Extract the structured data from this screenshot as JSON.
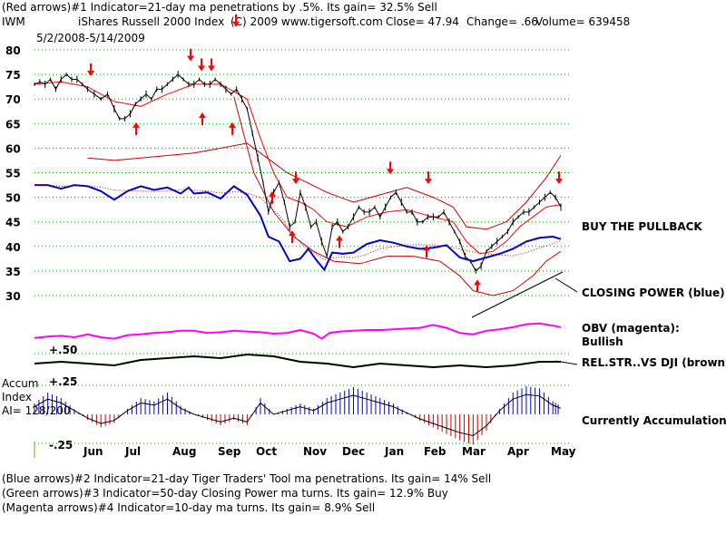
{
  "header": {
    "line1": "(Red arrows)#1 Indicator=21-day ma penetrations by .5%. Its gain= 32.5% Sell",
    "symbol": "IWM",
    "name": "iShares Russell 2000 Index",
    "copyright": "(C) 2009 www.tigersoft.com",
    "close": "Close=  47.94",
    "change": "Change= .66",
    "volume": "Volume= 639458",
    "daterange": "5/2/2008-5/14/2009"
  },
  "footer": {
    "line1": "(Blue arrows)#2 Indicator=21-day Tiger Traders' Tool ma penetrations. Its gain= 14% Sell",
    "line2": "(Green arrows)#3 Indicator=50-day Closing Power ma turns. Its gain= 12.9% Buy",
    "line3": "(Magenta arrows)#4 Indicator=10-day ma turns. Its gain= 8.9% Sell"
  },
  "annotations": {
    "buy": "BUY THE PULLBACK",
    "cp": "CLOSING POWER (blue):",
    "obv": "OBV (magenta):",
    "obv2": "Bullish",
    "rs": "REL.STR..VS DJI (brown):",
    "accum_label1": "Accum",
    "accum_label2": "Index",
    "accum_label3": "AI= 128/200",
    "accum_status": "Currently Accumulation",
    "rs_up": "+.50",
    "acc_up": "+.25",
    "acc_dn": "-.25"
  },
  "colors": {
    "price": "#000000",
    "ma": "#ff0000",
    "band": "#cc0000",
    "closing_power": "#0000cc",
    "obv": "#ff00ff",
    "rel_strength": "#000000",
    "arrow": "#ff0000",
    "accum_pos": "#0000cc",
    "accum_neg": "#cc0000",
    "grid": "#009900"
  },
  "chart_data": {
    "type": "line",
    "title": "iShares Russell 2000 Index",
    "y_ticks": [
      80,
      75,
      70,
      65,
      60,
      55,
      50,
      45,
      40,
      35,
      30
    ],
    "ylim": [
      25,
      83
    ],
    "months": [
      "Jun",
      "Jul",
      "Aug",
      "Sep",
      "Oct",
      "Nov",
      "Dec",
      "Jan",
      "Feb",
      "Mar",
      "Apr",
      "May"
    ],
    "grid": true,
    "price": [
      [
        0,
        73
      ],
      [
        4,
        73.5
      ],
      [
        8,
        73
      ],
      [
        12,
        74
      ],
      [
        16,
        72
      ],
      [
        20,
        74
      ],
      [
        24,
        75
      ],
      [
        28,
        74
      ],
      [
        32,
        74
      ],
      [
        36,
        73
      ],
      [
        40,
        72
      ],
      [
        45,
        71
      ],
      [
        50,
        70
      ],
      [
        55,
        71
      ],
      [
        60,
        68
      ],
      [
        64,
        66
      ],
      [
        68,
        66
      ],
      [
        72,
        67
      ],
      [
        76,
        69
      ],
      [
        80,
        70
      ],
      [
        84,
        71
      ],
      [
        88,
        70
      ],
      [
        92,
        72
      ],
      [
        96,
        72
      ],
      [
        100,
        73
      ],
      [
        104,
        74
      ],
      [
        108,
        75
      ],
      [
        112,
        74
      ],
      [
        116,
        73
      ],
      [
        120,
        73
      ],
      [
        124,
        74
      ],
      [
        128,
        73
      ],
      [
        132,
        73
      ],
      [
        136,
        74
      ],
      [
        140,
        73
      ],
      [
        144,
        72
      ],
      [
        148,
        71
      ],
      [
        152,
        72
      ],
      [
        156,
        70
      ],
      [
        160,
        68
      ],
      [
        164,
        63
      ],
      [
        168,
        58
      ],
      [
        172,
        53
      ],
      [
        176,
        47
      ],
      [
        180,
        51
      ],
      [
        184,
        53
      ],
      [
        188,
        49
      ],
      [
        192,
        44
      ],
      [
        196,
        45
      ],
      [
        200,
        51
      ],
      [
        204,
        48
      ],
      [
        208,
        44
      ],
      [
        212,
        45
      ],
      [
        216,
        41
      ],
      [
        220,
        38
      ],
      [
        224,
        44
      ],
      [
        228,
        45
      ],
      [
        232,
        43
      ],
      [
        236,
        44
      ],
      [
        240,
        46
      ],
      [
        244,
        48
      ],
      [
        248,
        47
      ],
      [
        252,
        47
      ],
      [
        256,
        48
      ],
      [
        260,
        46
      ],
      [
        264,
        48
      ],
      [
        268,
        50
      ],
      [
        272,
        51
      ],
      [
        276,
        49
      ],
      [
        280,
        47
      ],
      [
        284,
        47
      ],
      [
        288,
        45
      ],
      [
        292,
        45
      ],
      [
        296,
        46
      ],
      [
        300,
        46
      ],
      [
        304,
        46
      ],
      [
        308,
        47
      ],
      [
        312,
        45
      ],
      [
        316,
        43
      ],
      [
        320,
        41
      ],
      [
        324,
        38
      ],
      [
        328,
        37
      ],
      [
        332,
        35
      ],
      [
        336,
        36
      ],
      [
        340,
        39
      ],
      [
        344,
        40
      ],
      [
        348,
        41
      ],
      [
        352,
        42
      ],
      [
        356,
        43
      ],
      [
        360,
        45
      ],
      [
        364,
        46
      ],
      [
        368,
        47
      ],
      [
        372,
        47
      ],
      [
        376,
        48
      ],
      [
        380,
        49
      ],
      [
        384,
        50
      ],
      [
        388,
        51
      ],
      [
        392,
        50
      ],
      [
        396,
        48
      ]
    ],
    "ma21": [
      [
        0,
        73
      ],
      [
        20,
        73.5
      ],
      [
        40,
        72.5
      ],
      [
        60,
        69.5
      ],
      [
        80,
        68.5
      ],
      [
        100,
        71
      ],
      [
        120,
        73
      ],
      [
        140,
        73
      ],
      [
        160,
        70
      ],
      [
        170,
        62
      ],
      [
        180,
        55
      ],
      [
        190,
        50
      ],
      [
        200,
        49
      ],
      [
        210,
        47.5
      ],
      [
        220,
        45
      ],
      [
        235,
        44
      ],
      [
        250,
        46
      ],
      [
        265,
        47
      ],
      [
        280,
        47.5
      ],
      [
        300,
        46
      ],
      [
        315,
        45
      ],
      [
        325,
        41
      ],
      [
        335,
        38.5
      ],
      [
        345,
        39
      ],
      [
        355,
        41
      ],
      [
        365,
        44
      ],
      [
        375,
        46
      ],
      [
        385,
        48
      ],
      [
        396,
        48.5
      ]
    ],
    "upper_band": [
      [
        40,
        58
      ],
      [
        60,
        57.5
      ],
      [
        80,
        58
      ],
      [
        100,
        58.5
      ],
      [
        120,
        59
      ],
      [
        140,
        60
      ],
      [
        160,
        61
      ],
      [
        175,
        58
      ],
      [
        190,
        55
      ],
      [
        205,
        53
      ],
      [
        220,
        51
      ],
      [
        240,
        49
      ],
      [
        260,
        50.5
      ],
      [
        280,
        52
      ],
      [
        300,
        50
      ],
      [
        315,
        48
      ],
      [
        325,
        44
      ],
      [
        340,
        43.5
      ],
      [
        355,
        45
      ],
      [
        370,
        49
      ],
      [
        385,
        54
      ],
      [
        396,
        58.5
      ]
    ],
    "lower_band": [
      [
        150,
        70.5
      ],
      [
        165,
        55
      ],
      [
        180,
        47
      ],
      [
        195,
        42
      ],
      [
        210,
        39
      ],
      [
        225,
        37
      ],
      [
        245,
        36.5
      ],
      [
        265,
        38
      ],
      [
        285,
        38
      ],
      [
        305,
        37
      ],
      [
        320,
        34
      ],
      [
        330,
        31
      ],
      [
        345,
        30
      ],
      [
        360,
        31
      ],
      [
        375,
        34
      ],
      [
        385,
        37
      ],
      [
        396,
        39
      ]
    ],
    "closing_power": [
      [
        0,
        25.0
      ],
      [
        10,
        25.0
      ],
      [
        20,
        23.5
      ],
      [
        30,
        25.0
      ],
      [
        40,
        24.5
      ],
      [
        50,
        22.5
      ],
      [
        60,
        19.0
      ],
      [
        70,
        22.5
      ],
      [
        80,
        24.5
      ],
      [
        90,
        23.0
      ],
      [
        100,
        24.0
      ],
      [
        110,
        21.5
      ],
      [
        116,
        24.0
      ],
      [
        120,
        21.5
      ],
      [
        130,
        22.0
      ],
      [
        140,
        19.5
      ],
      [
        150,
        24.5
      ],
      [
        160,
        21.0
      ],
      [
        170,
        12.5
      ],
      [
        176,
        4.0
      ],
      [
        184,
        2.0
      ],
      [
        192,
        -6.0
      ],
      [
        200,
        -5.0
      ],
      [
        206,
        -1.0
      ],
      [
        212,
        -5.5
      ],
      [
        218,
        -9.5
      ],
      [
        224,
        -2.5
      ],
      [
        232,
        -3.0
      ],
      [
        240,
        -2.5
      ],
      [
        250,
        1.0
      ],
      [
        260,
        2.5
      ],
      [
        270,
        1.5
      ],
      [
        280,
        0.0
      ],
      [
        290,
        -1.0
      ],
      [
        300,
        -0.5
      ],
      [
        310,
        0.5
      ],
      [
        320,
        -4.5
      ],
      [
        330,
        -6.0
      ],
      [
        340,
        -4.5
      ],
      [
        350,
        -3.0
      ],
      [
        360,
        -1.0
      ],
      [
        370,
        2.0
      ],
      [
        380,
        3.5
      ],
      [
        390,
        4.0
      ],
      [
        396,
        3.0
      ]
    ],
    "obv": [
      [
        0,
        -8.0
      ],
      [
        10,
        -7.0
      ],
      [
        20,
        -6.5
      ],
      [
        30,
        -7.5
      ],
      [
        40,
        -5.5
      ],
      [
        50,
        -7.5
      ],
      [
        60,
        -8.5
      ],
      [
        70,
        -6.0
      ],
      [
        80,
        -5.5
      ],
      [
        90,
        -4.5
      ],
      [
        100,
        -4.0
      ],
      [
        110,
        -3.0
      ],
      [
        120,
        -3.0
      ],
      [
        130,
        -4.5
      ],
      [
        140,
        -4.0
      ],
      [
        150,
        -3.0
      ],
      [
        160,
        -3.5
      ],
      [
        170,
        -4.0
      ],
      [
        180,
        -5.0
      ],
      [
        190,
        -4.5
      ],
      [
        200,
        -2.5
      ],
      [
        210,
        -5.0
      ],
      [
        216,
        -8.5
      ],
      [
        222,
        -4.5
      ],
      [
        230,
        -3.5
      ],
      [
        240,
        -3.0
      ],
      [
        250,
        -2.5
      ],
      [
        260,
        -2.5
      ],
      [
        270,
        -2.0
      ],
      [
        280,
        -1.5
      ],
      [
        290,
        -1.0
      ],
      [
        300,
        1.0
      ],
      [
        310,
        -1.0
      ],
      [
        320,
        -4.5
      ],
      [
        330,
        -5.5
      ],
      [
        340,
        -3.0
      ],
      [
        350,
        -2.0
      ],
      [
        360,
        -0.5
      ],
      [
        370,
        1.5
      ],
      [
        380,
        2.0
      ],
      [
        390,
        0.5
      ],
      [
        396,
        -0.5
      ]
    ],
    "rel_strength": [
      [
        0,
        1.0
      ],
      [
        20,
        1.5
      ],
      [
        40,
        1.0
      ],
      [
        60,
        0.5
      ],
      [
        80,
        2.0
      ],
      [
        100,
        2.5
      ],
      [
        120,
        3.0
      ],
      [
        140,
        2.5
      ],
      [
        160,
        3.5
      ],
      [
        180,
        3.0
      ],
      [
        200,
        1.5
      ],
      [
        220,
        1.0
      ],
      [
        240,
        0.0
      ],
      [
        260,
        1.0
      ],
      [
        280,
        0.5
      ],
      [
        300,
        0.0
      ],
      [
        320,
        0.5
      ],
      [
        340,
        0.0
      ],
      [
        360,
        0.5
      ],
      [
        380,
        1.5
      ],
      [
        396,
        1.5
      ]
    ],
    "accum": [
      [
        0,
        0.1
      ],
      [
        10,
        0.2
      ],
      [
        20,
        0.15
      ],
      [
        30,
        0.05
      ],
      [
        40,
        -0.05
      ],
      [
        50,
        -0.12
      ],
      [
        60,
        -0.08
      ],
      [
        70,
        0.05
      ],
      [
        80,
        0.15
      ],
      [
        90,
        0.12
      ],
      [
        100,
        0.2
      ],
      [
        110,
        0.08
      ],
      [
        120,
        0.0
      ],
      [
        130,
        -0.05
      ],
      [
        140,
        -0.1
      ],
      [
        150,
        -0.05
      ],
      [
        160,
        -0.1
      ],
      [
        170,
        0.15
      ],
      [
        180,
        0.0
      ],
      [
        190,
        0.05
      ],
      [
        200,
        0.1
      ],
      [
        210,
        0.05
      ],
      [
        220,
        0.15
      ],
      [
        230,
        0.2
      ],
      [
        240,
        0.25
      ],
      [
        250,
        0.2
      ],
      [
        260,
        0.15
      ],
      [
        270,
        0.1
      ],
      [
        280,
        0.02
      ],
      [
        290,
        -0.06
      ],
      [
        300,
        -0.12
      ],
      [
        310,
        -0.18
      ],
      [
        320,
        -0.24
      ],
      [
        330,
        -0.28
      ],
      [
        340,
        -0.15
      ],
      [
        350,
        0.05
      ],
      [
        360,
        0.2
      ],
      [
        370,
        0.26
      ],
      [
        380,
        0.24
      ],
      [
        390,
        0.12
      ],
      [
        396,
        0.08
      ]
    ]
  }
}
